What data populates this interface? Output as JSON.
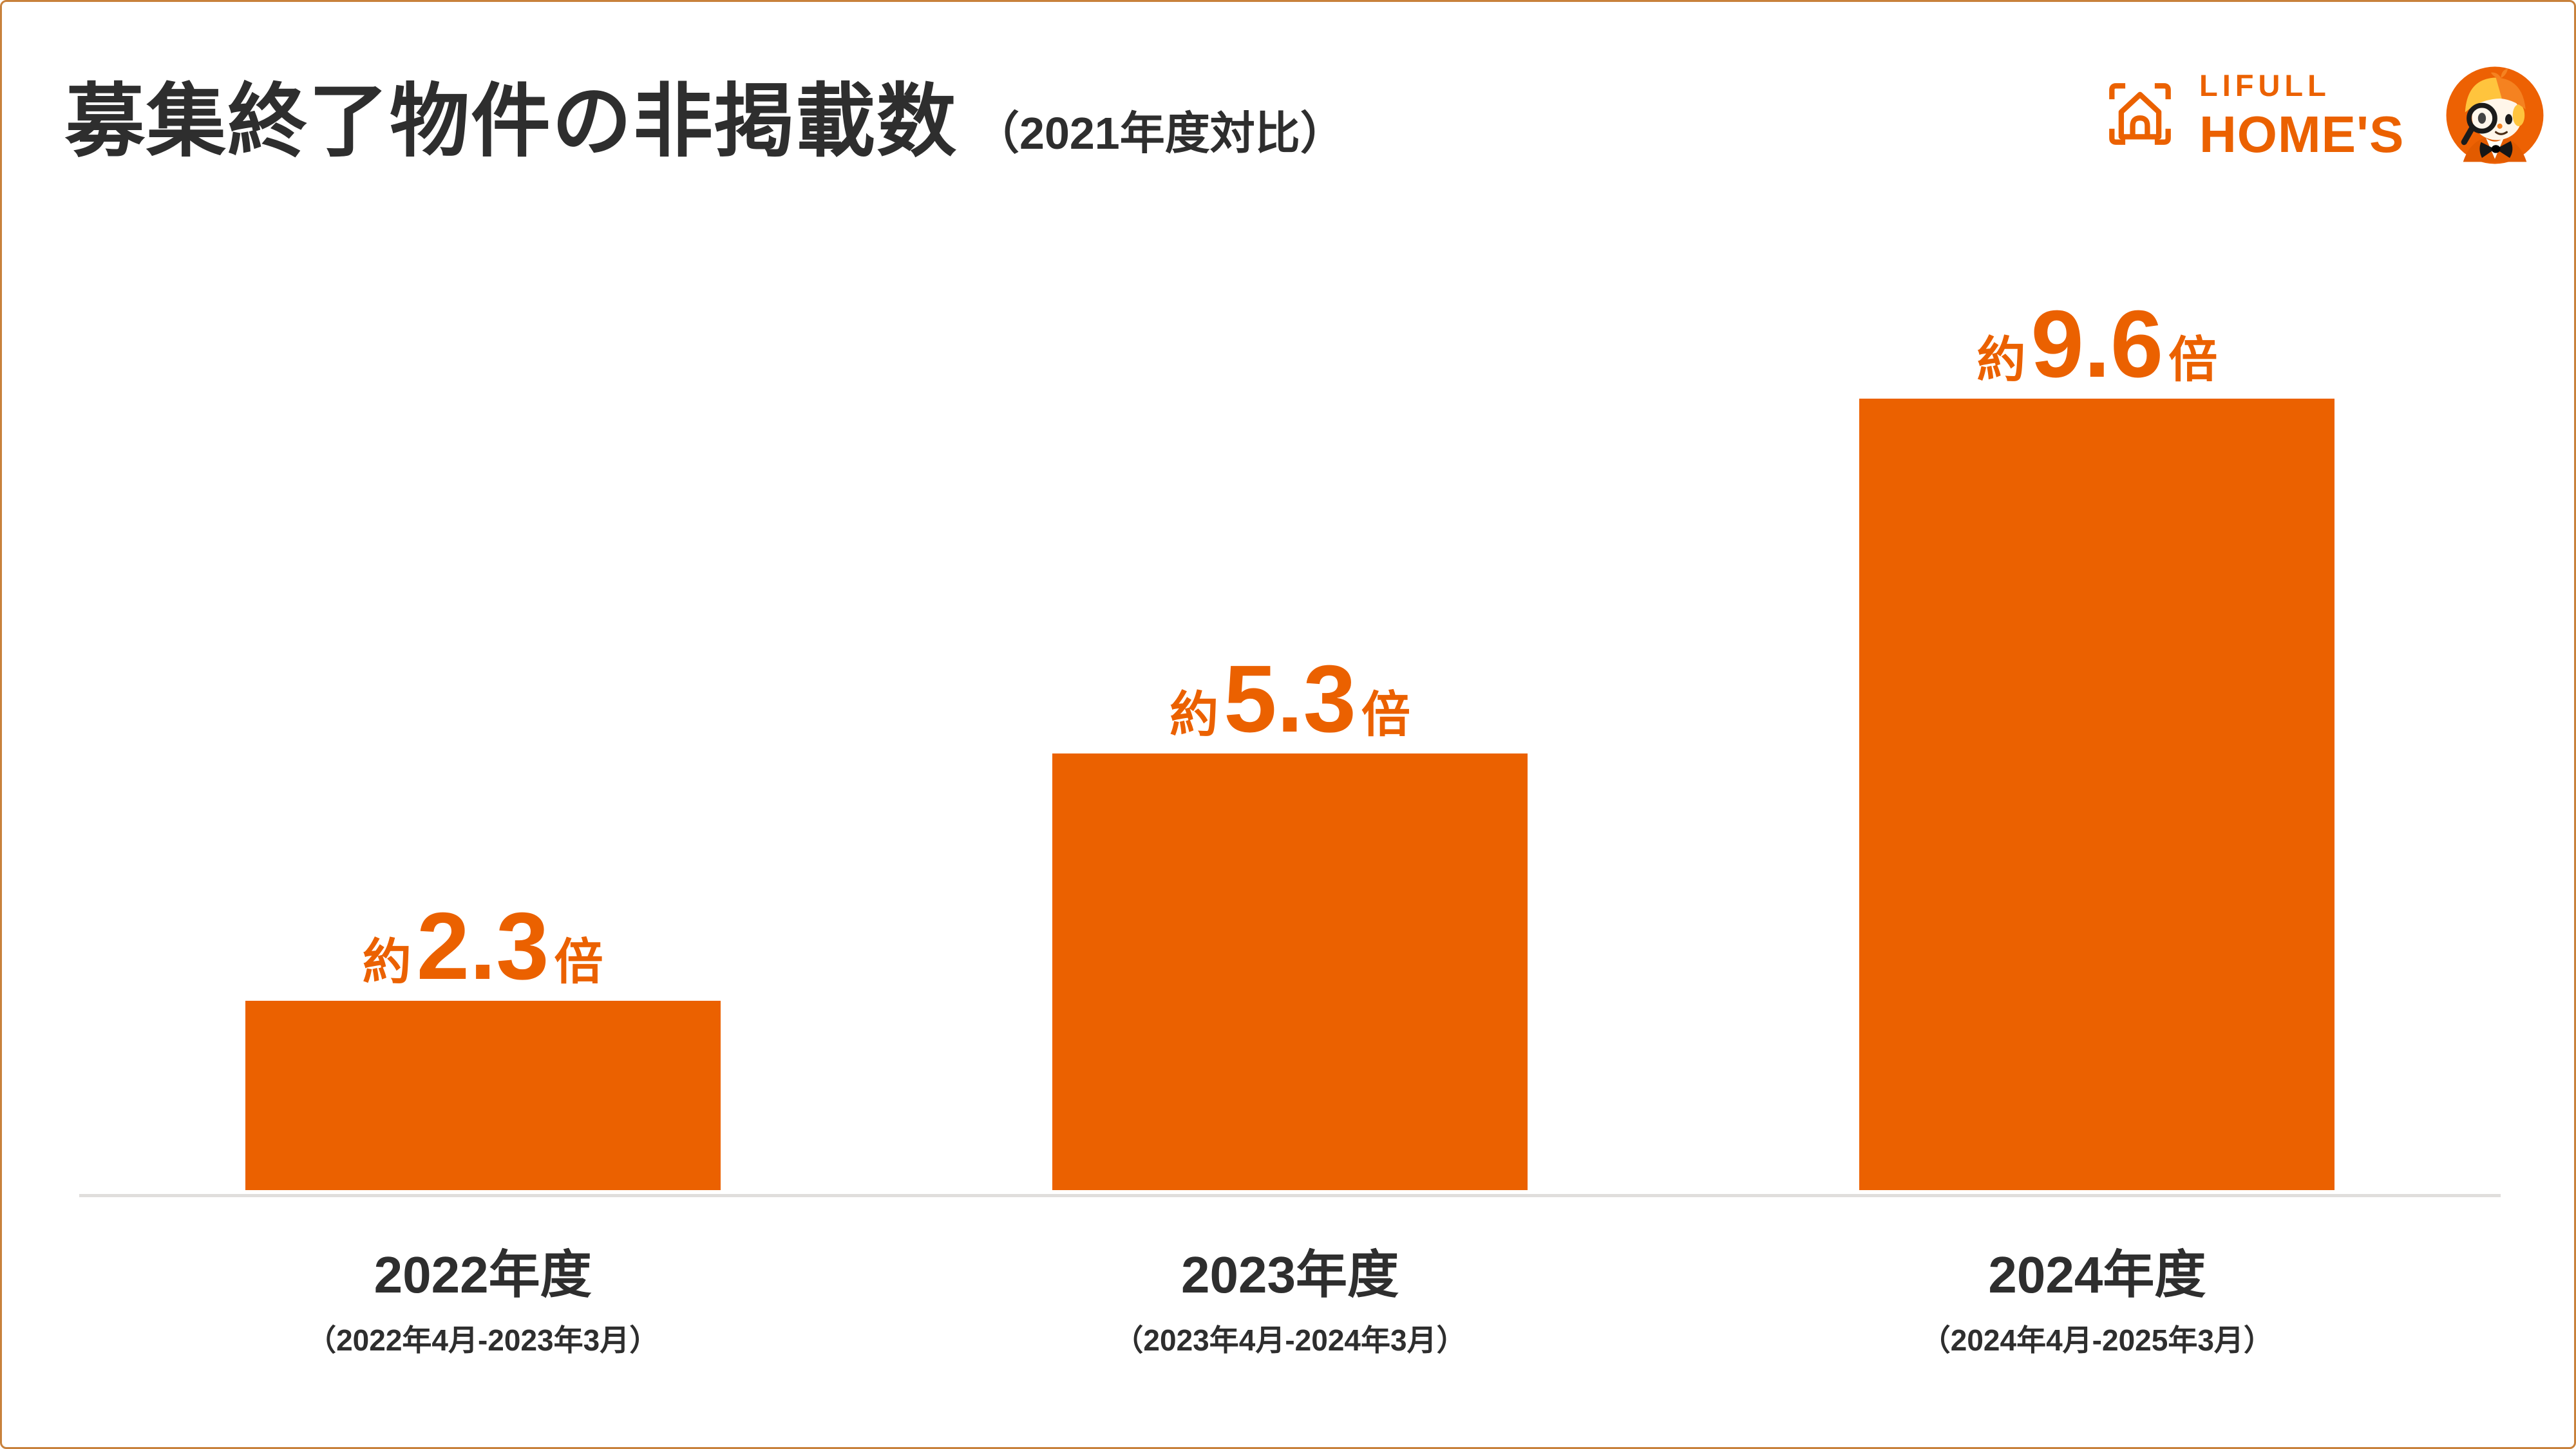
{
  "colors": {
    "accent": "#EB6100",
    "text": "#2E2E2E",
    "axis_line": "#E0DEDC",
    "background": "#FFFFFF",
    "frame_border": "#C8813B"
  },
  "logo": {
    "brand_top": "LIFULL",
    "brand_bottom": "HOME'S",
    "mark_icon": "house-viewfinder-icon",
    "mascot_icon": "homes-kun-detective-mascot-icon",
    "color": "#EB6100"
  },
  "chart_data": {
    "type": "bar",
    "title": "募集終了物件の非掲載数",
    "subtitle": "（2021年度対比）",
    "categories": [
      "2022年度",
      "2023年度",
      "2024年度"
    ],
    "category_periods": [
      "（2022年4月-2023年3月）",
      "（2023年4月-2024年3月）",
      "（2024年4月-2025年3月）"
    ],
    "values": [
      2.3,
      5.3,
      9.6
    ],
    "value_display": [
      {
        "prefix": "約",
        "number": "2.3",
        "suffix": "倍"
      },
      {
        "prefix": "約",
        "number": "5.3",
        "suffix": "倍"
      },
      {
        "prefix": "約",
        "number": "9.6",
        "suffix": "倍"
      }
    ],
    "xlabel": "",
    "ylabel": "",
    "ylim": [
      0,
      10.5
    ],
    "grid": false,
    "legend": false,
    "bar_color": "#EB6100",
    "baseline_axis": true,
    "axis_line_color": "#E0DEDC"
  }
}
